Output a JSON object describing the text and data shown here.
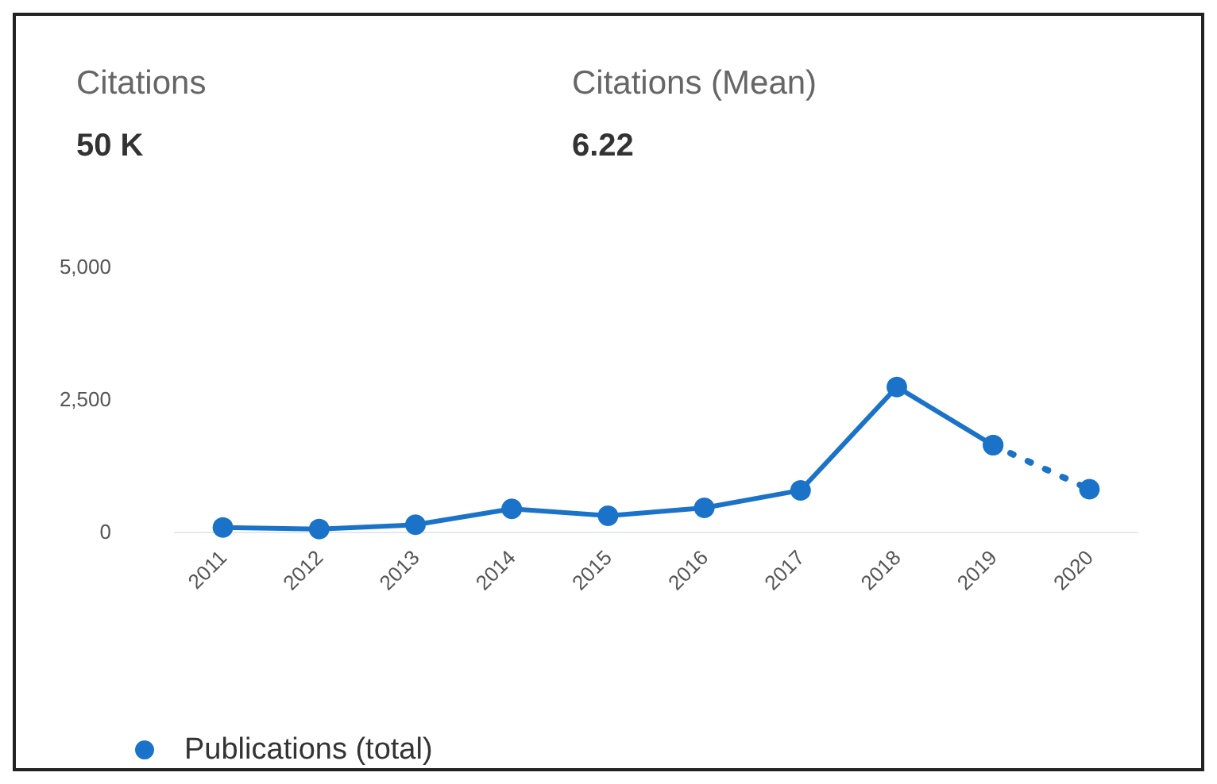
{
  "chart_data": {
    "type": "line",
    "annotations": [
      "Citations",
      "50 K",
      "Citations (Mean)",
      "6.22"
    ],
    "categories": [
      "2011",
      "2012",
      "2013",
      "2014",
      "2015",
      "2016",
      "2017",
      "2018",
      "2019",
      "2020"
    ],
    "series": [
      {
        "name": "Publications (total)",
        "color": "#1a73c8",
        "values": [
          80,
          50,
          130,
          430,
          300,
          450,
          780,
          2730,
          1630,
          null
        ],
        "line_style": "solid"
      },
      {
        "color": "#1a73c8",
        "values": [
          null,
          null,
          null,
          null,
          null,
          null,
          null,
          null,
          1630,
          800
        ],
        "line_style": "dotted"
      }
    ],
    "ylim": [
      0,
      5000
    ],
    "yticks": [
      0,
      {
        "value": 2500,
        "label": "2,500"
      },
      {
        "value": 5000,
        "label": "5,000"
      }
    ],
    "grid": false,
    "legend": "bottom left",
    "marker": "circle"
  }
}
